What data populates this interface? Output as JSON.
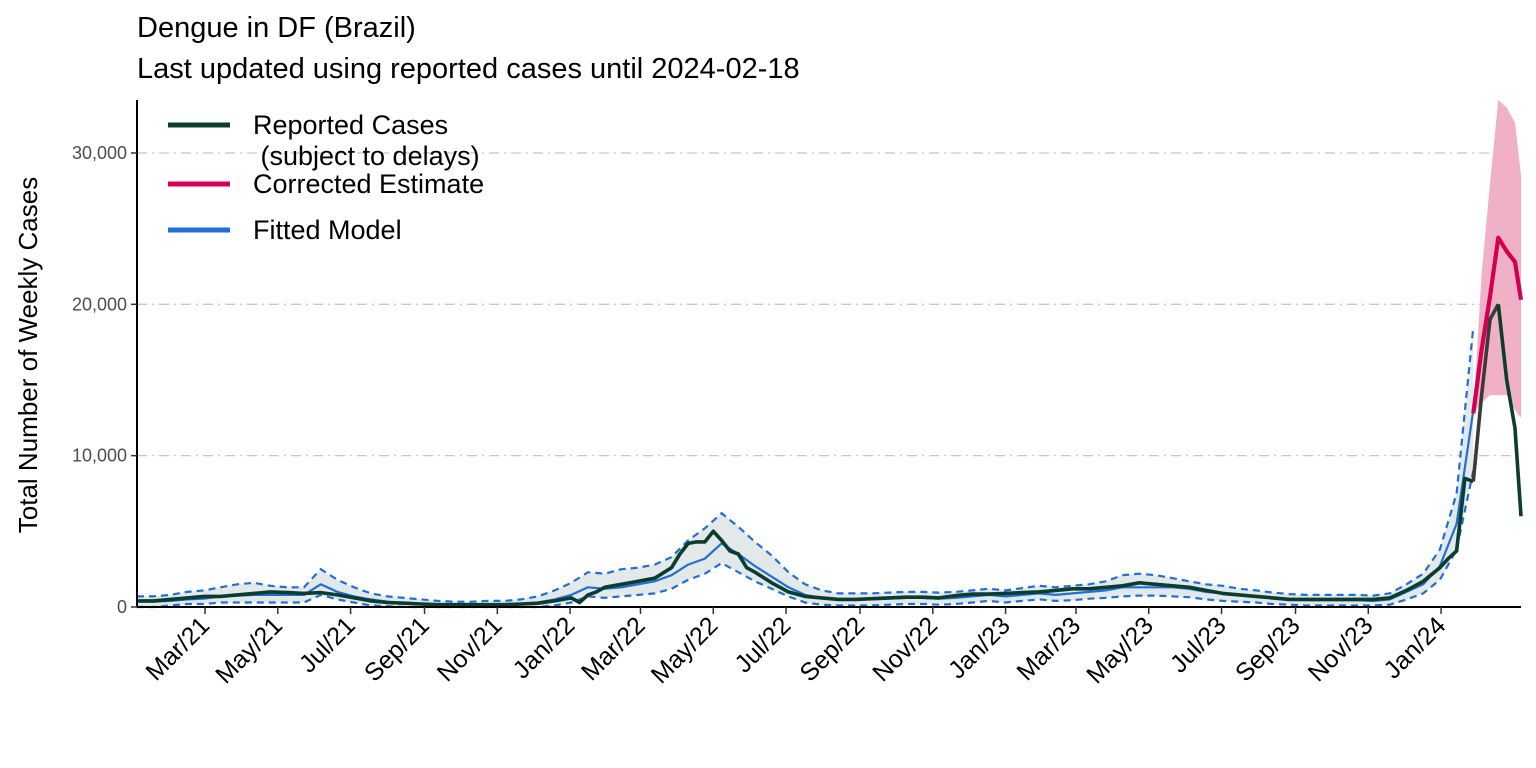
{
  "chart_data": {
    "type": "line",
    "title": "Dengue in DF (Brazil)",
    "subtitle": "Last updated using reported cases until 2024-02-18",
    "xlabel": "",
    "ylabel": "Total Number of Weekly Cases",
    "x_type": "date",
    "xlim": [
      "2021-01-03",
      "2024-03-08"
    ],
    "ylim": [
      0,
      33500
    ],
    "y_ticks": [
      0,
      10000,
      20000,
      30000
    ],
    "y_tick_labels": [
      "0",
      "10,000",
      "20,000",
      "30,000"
    ],
    "x_ticks": [
      "2021-03-01",
      "2021-05-01",
      "2021-07-01",
      "2021-09-01",
      "2021-11-01",
      "2022-01-01",
      "2022-03-01",
      "2022-05-01",
      "2022-07-01",
      "2022-09-01",
      "2022-11-01",
      "2023-01-01",
      "2023-03-01",
      "2023-05-01",
      "2023-07-01",
      "2023-09-01",
      "2023-11-01",
      "2024-01-01"
    ],
    "x_tick_labels": [
      "Mar/21",
      "May/21",
      "Jul/21",
      "Sep/21",
      "Nov/21",
      "Jan/22",
      "Mar/22",
      "May/22",
      "Jul/22",
      "Sep/22",
      "Nov/22",
      "Jan/23",
      "Mar/23",
      "May/23",
      "Jul/23",
      "Sep/23",
      "Nov/23",
      "Jan/24"
    ],
    "grid": "horizontal dash-dot",
    "legend_position": "top-left",
    "legend": [
      {
        "label_line1": "Reported Cases",
        "label_line2": " (subject to delays)",
        "color": "#0b3d2e"
      },
      {
        "label_line1": "Corrected Estimate",
        "label_line2": "",
        "color": "#d4004f"
      },
      {
        "label_line1": "Fitted Model",
        "label_line2": "",
        "color": "#1f6fd6"
      }
    ],
    "colors": {
      "reported": "#0b3d2e",
      "reported_recent": "#3a3a3a",
      "corrected": "#d4004f",
      "corrected_band": "#efadc4",
      "fitted": "#1f6fd6",
      "fitted_band": "#e3e8e8"
    },
    "series": {
      "reported": {
        "x": [
          "2021-01-03",
          "2021-01-17",
          "2021-01-31",
          "2021-02-14",
          "2021-02-28",
          "2021-03-14",
          "2021-03-28",
          "2021-04-11",
          "2021-04-25",
          "2021-05-09",
          "2021-05-23",
          "2021-06-06",
          "2021-06-20",
          "2021-07-04",
          "2021-07-18",
          "2021-08-01",
          "2021-08-15",
          "2021-08-29",
          "2021-09-12",
          "2021-09-26",
          "2021-10-10",
          "2021-10-24",
          "2021-11-07",
          "2021-11-21",
          "2021-12-05",
          "2021-12-19",
          "2022-01-02",
          "2022-01-09",
          "2022-01-16",
          "2022-01-23",
          "2022-01-30",
          "2022-02-13",
          "2022-02-27",
          "2022-03-13",
          "2022-03-27",
          "2022-04-03",
          "2022-04-10",
          "2022-04-17",
          "2022-04-24",
          "2022-05-01",
          "2022-05-08",
          "2022-05-15",
          "2022-05-22",
          "2022-05-29",
          "2022-06-05",
          "2022-06-19",
          "2022-07-03",
          "2022-07-17",
          "2022-07-31",
          "2022-08-14",
          "2022-08-28",
          "2022-09-11",
          "2022-09-25",
          "2022-10-09",
          "2022-10-23",
          "2022-11-06",
          "2022-11-20",
          "2022-12-04",
          "2022-12-18",
          "2023-01-01",
          "2023-01-15",
          "2023-01-29",
          "2023-02-12",
          "2023-02-26",
          "2023-03-12",
          "2023-03-26",
          "2023-04-09",
          "2023-04-23",
          "2023-05-07",
          "2023-05-21",
          "2023-06-04",
          "2023-06-18",
          "2023-07-02",
          "2023-07-16",
          "2023-07-30",
          "2023-08-13",
          "2023-08-27",
          "2023-09-10",
          "2023-09-24",
          "2023-10-08",
          "2023-10-22",
          "2023-11-05",
          "2023-11-19",
          "2023-12-03",
          "2023-12-17",
          "2023-12-31",
          "2024-01-07",
          "2024-01-14",
          "2024-01-21",
          "2024-01-28"
        ],
        "y": [
          400,
          400,
          500,
          600,
          700,
          700,
          800,
          900,
          1000,
          950,
          900,
          950,
          800,
          600,
          400,
          300,
          250,
          200,
          150,
          150,
          150,
          150,
          150,
          200,
          250,
          400,
          600,
          300,
          800,
          1000,
          1300,
          1500,
          1700,
          1900,
          2600,
          3500,
          4200,
          4300,
          4300,
          5000,
          4400,
          3700,
          3500,
          2600,
          2300,
          1600,
          1000,
          700,
          600,
          500,
          500,
          550,
          600,
          650,
          650,
          600,
          750,
          850,
          850,
          900,
          950,
          1000,
          1100,
          1200,
          1200,
          1300,
          1400,
          1600,
          1500,
          1400,
          1300,
          1100,
          900,
          800,
          700,
          600,
          500,
          500,
          500,
          500,
          500,
          500,
          600,
          1100,
          1700,
          2600,
          3200,
          3700,
          8500,
          8300
        ]
      },
      "reported_recent": {
        "x": [
          "2024-01-28",
          "2024-02-04",
          "2024-02-11",
          "2024-02-18"
        ],
        "y": [
          8300,
          14000,
          19000,
          20000
        ]
      },
      "reported_tail": {
        "x": [
          "2024-02-18",
          "2024-02-25",
          "2024-03-03",
          "2024-03-08"
        ],
        "y": [
          20000,
          15000,
          11800,
          6000
        ]
      },
      "corrected": {
        "x": [
          "2024-01-28",
          "2024-02-04",
          "2024-02-11",
          "2024-02-18",
          "2024-02-25",
          "2024-03-03",
          "2024-03-08"
        ],
        "y": [
          12800,
          17000,
          20500,
          24400,
          23500,
          22800,
          20300
        ]
      },
      "corrected_band": {
        "x": [
          "2024-01-28",
          "2024-02-04",
          "2024-02-11",
          "2024-02-18",
          "2024-02-25",
          "2024-03-03",
          "2024-03-08"
        ],
        "lower": [
          12800,
          13500,
          14000,
          14000,
          14000,
          13000,
          12500
        ],
        "upper": [
          12800,
          22000,
          28000,
          33500,
          33000,
          32000,
          28500
        ]
      },
      "fitted": {
        "x": [
          "2021-01-03",
          "2021-01-17",
          "2021-01-31",
          "2021-02-14",
          "2021-02-28",
          "2021-03-14",
          "2021-03-28",
          "2021-04-11",
          "2021-04-25",
          "2021-05-09",
          "2021-05-23",
          "2021-06-06",
          "2021-06-20",
          "2021-07-04",
          "2021-07-18",
          "2021-08-01",
          "2021-08-15",
          "2021-08-29",
          "2021-09-12",
          "2021-09-26",
          "2021-10-10",
          "2021-10-24",
          "2021-11-07",
          "2021-11-21",
          "2021-12-05",
          "2021-12-19",
          "2022-01-02",
          "2022-01-16",
          "2022-01-30",
          "2022-02-13",
          "2022-02-27",
          "2022-03-13",
          "2022-03-27",
          "2022-04-10",
          "2022-04-24",
          "2022-05-08",
          "2022-05-22",
          "2022-06-05",
          "2022-06-19",
          "2022-07-03",
          "2022-07-17",
          "2022-07-31",
          "2022-08-14",
          "2022-08-28",
          "2022-09-11",
          "2022-09-25",
          "2022-10-09",
          "2022-10-23",
          "2022-11-06",
          "2022-11-20",
          "2022-12-04",
          "2022-12-18",
          "2023-01-01",
          "2023-01-15",
          "2023-01-29",
          "2023-02-12",
          "2023-02-26",
          "2023-03-12",
          "2023-03-26",
          "2023-04-09",
          "2023-04-23",
          "2023-05-07",
          "2023-05-21",
          "2023-06-04",
          "2023-06-18",
          "2023-07-02",
          "2023-07-16",
          "2023-07-30",
          "2023-08-13",
          "2023-08-27",
          "2023-09-10",
          "2023-09-24",
          "2023-10-08",
          "2023-10-22",
          "2023-11-05",
          "2023-11-19",
          "2023-12-03",
          "2023-12-17",
          "2023-12-31",
          "2024-01-14",
          "2024-01-28"
        ],
        "y": [
          350,
          350,
          400,
          500,
          550,
          700,
          750,
          800,
          800,
          800,
          800,
          1500,
          1000,
          700,
          500,
          350,
          250,
          200,
          150,
          100,
          100,
          150,
          150,
          200,
          300,
          500,
          800,
          1300,
          1200,
          1300,
          1500,
          1700,
          2100,
          2800,
          3200,
          4200,
          3500,
          2700,
          2000,
          1300,
          800,
          600,
          500,
          500,
          500,
          550,
          600,
          600,
          550,
          600,
          700,
          800,
          700,
          800,
          900,
          800,
          900,
          1000,
          1100,
          1300,
          1300,
          1300,
          1300,
          1200,
          1000,
          900,
          800,
          700,
          600,
          500,
          450,
          450,
          450,
          450,
          400,
          500,
          1000,
          1500,
          2700,
          5500,
          13000
        ]
      },
      "fitted_band": {
        "x": [
          "2021-01-03",
          "2021-01-17",
          "2021-01-31",
          "2021-02-14",
          "2021-02-28",
          "2021-03-14",
          "2021-03-28",
          "2021-04-11",
          "2021-04-25",
          "2021-05-09",
          "2021-05-23",
          "2021-06-06",
          "2021-06-20",
          "2021-07-04",
          "2021-07-18",
          "2021-08-01",
          "2021-08-15",
          "2021-08-29",
          "2021-09-12",
          "2021-09-26",
          "2021-10-10",
          "2021-10-24",
          "2021-11-07",
          "2021-11-21",
          "2021-12-05",
          "2021-12-19",
          "2022-01-02",
          "2022-01-16",
          "2022-01-30",
          "2022-02-13",
          "2022-02-27",
          "2022-03-13",
          "2022-03-27",
          "2022-04-10",
          "2022-04-24",
          "2022-05-08",
          "2022-05-22",
          "2022-06-05",
          "2022-06-19",
          "2022-07-03",
          "2022-07-17",
          "2022-07-31",
          "2022-08-14",
          "2022-08-28",
          "2022-09-11",
          "2022-09-25",
          "2022-10-09",
          "2022-10-23",
          "2022-11-06",
          "2022-11-20",
          "2022-12-04",
          "2022-12-18",
          "2023-01-01",
          "2023-01-15",
          "2023-01-29",
          "2023-02-12",
          "2023-02-26",
          "2023-03-12",
          "2023-03-26",
          "2023-04-09",
          "2023-04-23",
          "2023-05-07",
          "2023-05-21",
          "2023-06-04",
          "2023-06-18",
          "2023-07-02",
          "2023-07-16",
          "2023-07-30",
          "2023-08-13",
          "2023-08-27",
          "2023-09-10",
          "2023-09-24",
          "2023-10-08",
          "2023-10-22",
          "2023-11-05",
          "2023-11-19",
          "2023-12-03",
          "2023-12-17",
          "2023-12-31",
          "2024-01-14",
          "2024-01-28"
        ],
        "lower": [
          0,
          0,
          100,
          200,
          200,
          300,
          300,
          300,
          300,
          300,
          300,
          800,
          500,
          300,
          100,
          50,
          0,
          0,
          0,
          0,
          0,
          0,
          0,
          0,
          0,
          100,
          300,
          700,
          600,
          700,
          800,
          900,
          1200,
          1800,
          2200,
          2900,
          2300,
          1700,
          1200,
          700,
          300,
          150,
          100,
          100,
          100,
          150,
          200,
          200,
          150,
          200,
          300,
          400,
          300,
          400,
          500,
          400,
          450,
          550,
          600,
          700,
          750,
          750,
          700,
          650,
          500,
          400,
          350,
          300,
          200,
          150,
          100,
          100,
          100,
          100,
          100,
          150,
          500,
          900,
          1800,
          3800,
          9000
        ],
        "upper": [
          700,
          700,
          800,
          1000,
          1100,
          1300,
          1500,
          1600,
          1400,
          1300,
          1300,
          2500,
          1800,
          1300,
          900,
          700,
          600,
          500,
          400,
          350,
          350,
          400,
          400,
          500,
          700,
          1100,
          1600,
          2300,
          2200,
          2500,
          2600,
          2800,
          3300,
          4400,
          5200,
          6200,
          5300,
          4300,
          3400,
          2300,
          1500,
          1100,
          900,
          900,
          900,
          950,
          1000,
          1000,
          950,
          1000,
          1100,
          1200,
          1100,
          1250,
          1400,
          1300,
          1400,
          1500,
          1700,
          2100,
          2200,
          2100,
          1900,
          1700,
          1500,
          1400,
          1200,
          1100,
          950,
          850,
          800,
          800,
          800,
          800,
          750,
          900,
          1500,
          2200,
          3800,
          7500,
          18500
        ]
      }
    }
  }
}
